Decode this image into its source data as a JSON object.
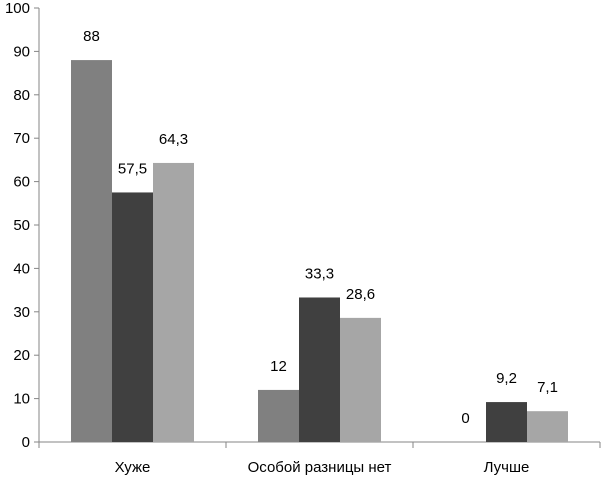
{
  "chart_data": {
    "type": "bar",
    "categories": [
      "Хуже",
      "Особой разницы нет",
      "Лучше"
    ],
    "series": [
      {
        "values": [
          88,
          12,
          0
        ],
        "color": "#808080"
      },
      {
        "values": [
          57.5,
          33.3,
          9.2
        ],
        "color": "#404040"
      },
      {
        "values": [
          64.3,
          28.6,
          7.1
        ],
        "color": "#a6a6a6"
      }
    ],
    "value_labels": [
      [
        "88",
        "12",
        "0"
      ],
      [
        "57,5",
        "33,3",
        "9,2"
      ],
      [
        "64,3",
        "28,6",
        "7,1"
      ]
    ],
    "y_ticks": [
      "0",
      "10",
      "20",
      "30",
      "40",
      "50",
      "60",
      "70",
      "80",
      "90",
      "100"
    ],
    "ylim": [
      0,
      100
    ],
    "grid": false,
    "legend": "none"
  }
}
